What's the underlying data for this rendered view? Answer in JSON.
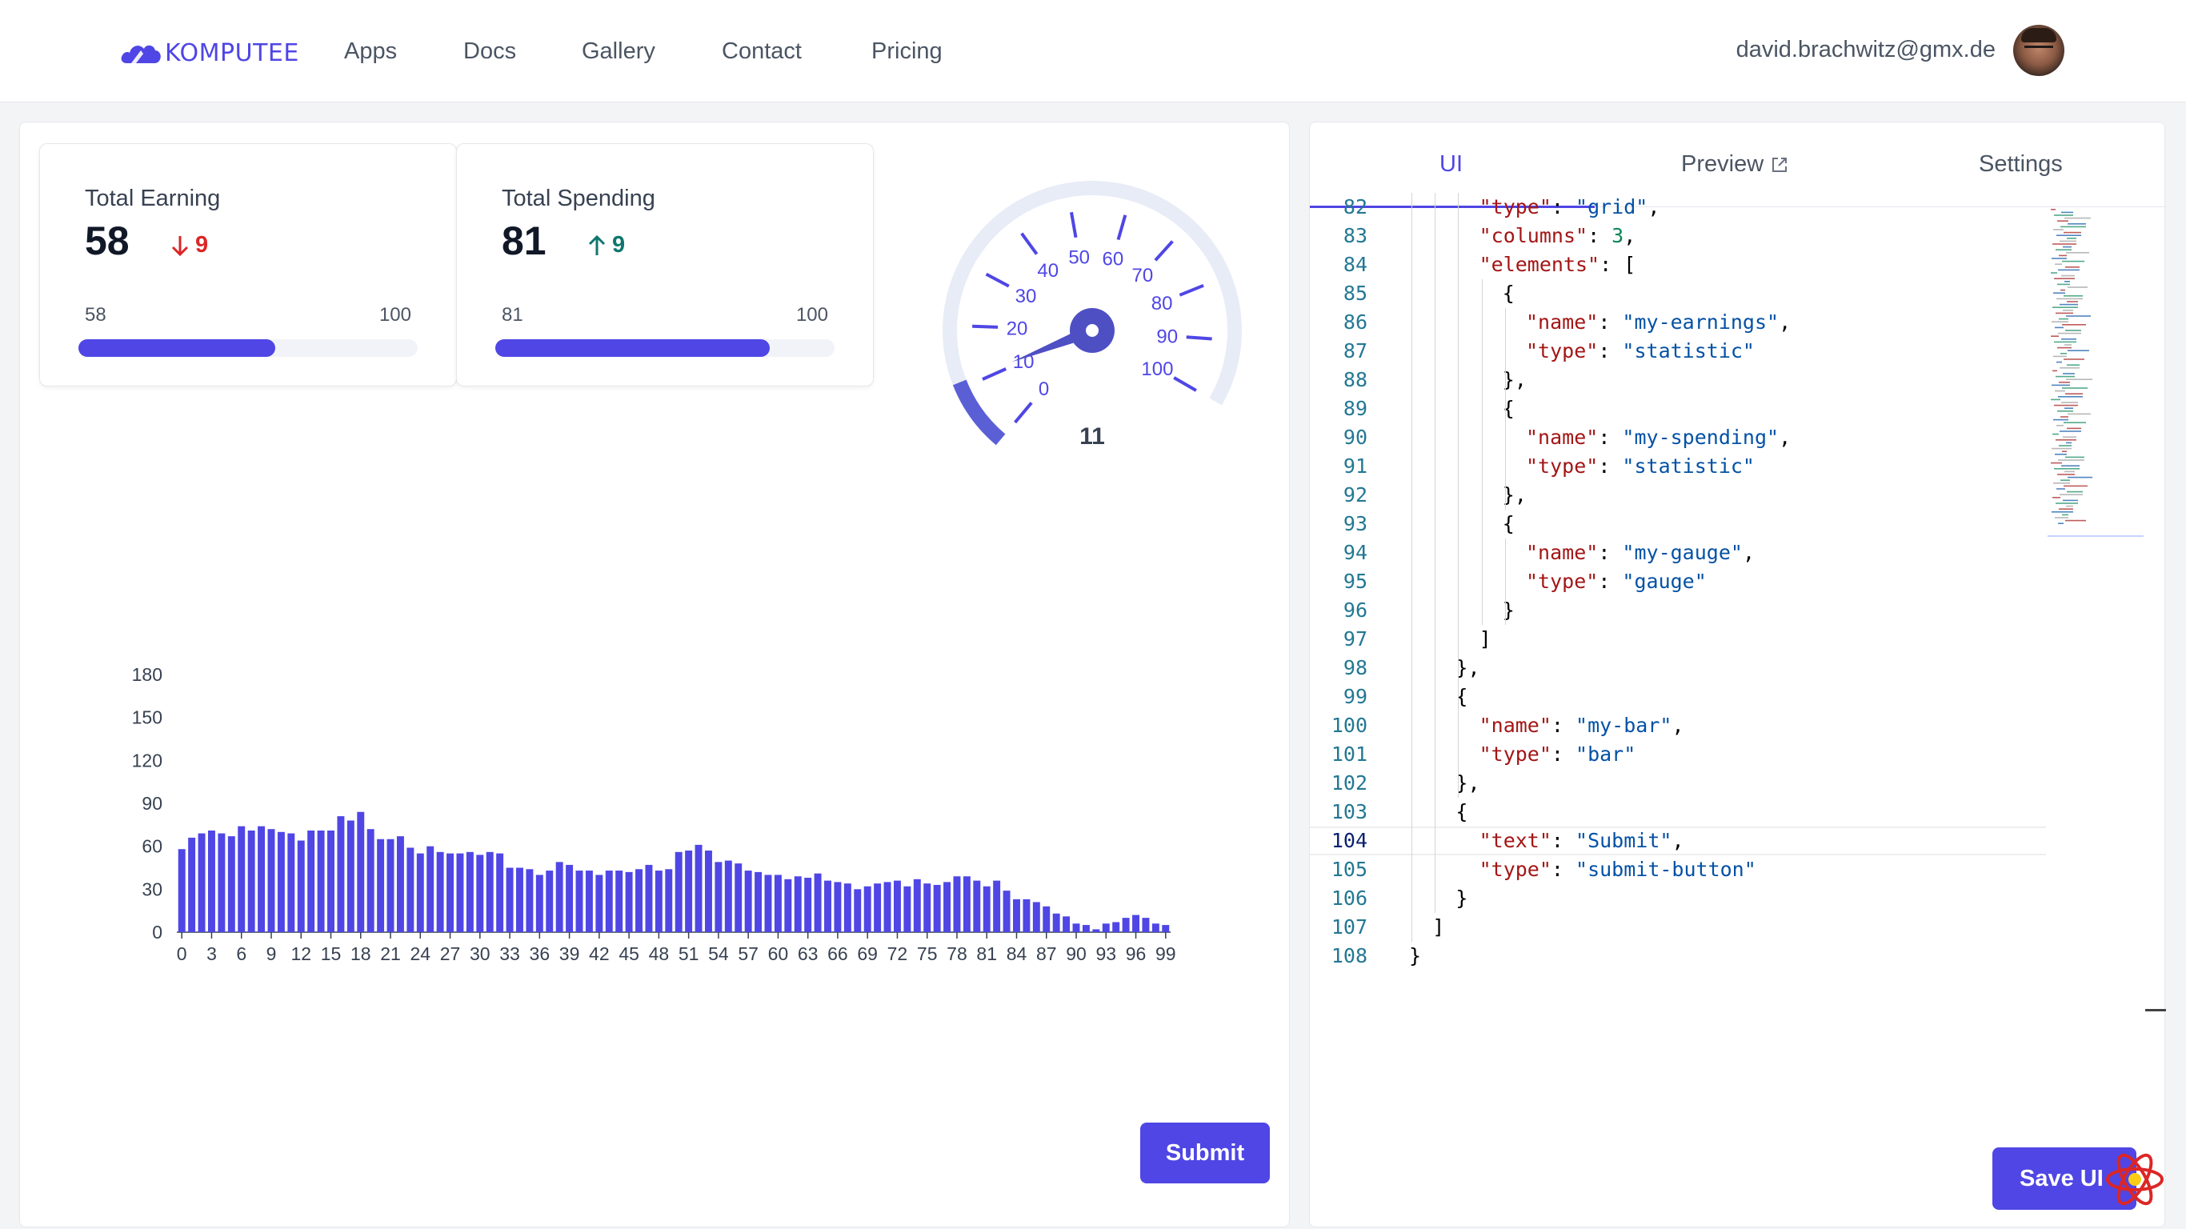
{
  "nav": {
    "brand": "KOMPUTEE",
    "links": [
      "Apps",
      "Docs",
      "Gallery",
      "Contact",
      "Pricing"
    ],
    "user_email": "david.brachwitz@gmx.de"
  },
  "cards": [
    {
      "title": "Total Earning",
      "value": "58",
      "delta": "9",
      "direction": "down",
      "progress_current": "58",
      "progress_max": "100",
      "progress_fraction": 0.58
    },
    {
      "title": "Total Spending",
      "value": "81",
      "delta": "9",
      "direction": "up",
      "progress_current": "81",
      "progress_max": "100",
      "progress_fraction": 0.81
    }
  ],
  "gauge": {
    "value": 11,
    "value_label": "11",
    "min": 0,
    "max": 100,
    "tick_labels": [
      "0",
      "10",
      "20",
      "30",
      "40",
      "50",
      "60",
      "70",
      "80",
      "90",
      "100"
    ]
  },
  "chart_data": {
    "type": "bar",
    "title": "",
    "xlabel": "",
    "ylabel": "",
    "ylim": [
      0,
      180
    ],
    "y_ticks": [
      "0",
      "30",
      "60",
      "90",
      "120",
      "150",
      "180"
    ],
    "x_tick_labels": [
      "0",
      "3",
      "6",
      "9",
      "12",
      "15",
      "18",
      "21",
      "24",
      "27",
      "30",
      "33",
      "36",
      "39",
      "42",
      "45",
      "48",
      "51",
      "54",
      "57",
      "60",
      "63",
      "66",
      "69",
      "72",
      "75",
      "78",
      "81",
      "84",
      "87",
      "90",
      "93",
      "96",
      "99"
    ],
    "grid": false,
    "color": "#4f46e5",
    "x": [
      0,
      1,
      2,
      3,
      4,
      5,
      6,
      7,
      8,
      9,
      10,
      11,
      12,
      13,
      14,
      15,
      16,
      17,
      18,
      19,
      20,
      21,
      22,
      23,
      24,
      25,
      26,
      27,
      28,
      29,
      30,
      31,
      32,
      33,
      34,
      35,
      36,
      37,
      38,
      39,
      40,
      41,
      42,
      43,
      44,
      45,
      46,
      47,
      48,
      49,
      50,
      51,
      52,
      53,
      54,
      55,
      56,
      57,
      58,
      59,
      60,
      61,
      62,
      63,
      64,
      65,
      66,
      67,
      68,
      69,
      70,
      71,
      72,
      73,
      74,
      75,
      76,
      77,
      78,
      79,
      80,
      81,
      82,
      83,
      84,
      85,
      86,
      87,
      88,
      89,
      90,
      91,
      92,
      93,
      94,
      95,
      96,
      97,
      98,
      99
    ],
    "values": [
      58,
      66,
      69,
      71,
      69,
      67,
      74,
      71,
      74,
      72,
      70,
      69,
      64,
      71,
      71,
      71,
      81,
      78,
      84,
      72,
      65,
      65,
      67,
      59,
      55,
      60,
      56,
      55,
      55,
      56,
      54,
      56,
      55,
      45,
      45,
      44,
      40,
      43,
      49,
      47,
      43,
      43,
      40,
      43,
      43,
      42,
      44,
      47,
      43,
      44,
      56,
      57,
      61,
      57,
      49,
      50,
      48,
      43,
      42,
      40,
      40,
      37,
      39,
      38,
      41,
      36,
      35,
      34,
      30,
      32,
      34,
      35,
      36,
      32,
      37,
      34,
      33,
      35,
      39,
      39,
      36,
      32,
      36,
      29,
      23,
      23,
      21,
      18,
      13,
      11,
      6,
      5,
      2,
      6,
      7,
      10,
      12,
      10,
      6,
      5
    ]
  },
  "submit_label": "Submit",
  "tabs": [
    {
      "label": "UI",
      "active": true
    },
    {
      "label": "Preview",
      "active": false
    },
    {
      "label": "Settings",
      "active": false
    }
  ],
  "code_lines": [
    {
      "n": "82",
      "indent": 6,
      "html": "<span class=\"k\">\"type\"</span>: <span class=\"s\">\"grid\"</span>,"
    },
    {
      "n": "83",
      "indent": 6,
      "html": "<span class=\"k\">\"columns\"</span>: <span class=\"n\">3</span>,"
    },
    {
      "n": "84",
      "indent": 6,
      "html": "<span class=\"k\">\"elements\"</span>: ["
    },
    {
      "n": "85",
      "indent": 8,
      "html": "{"
    },
    {
      "n": "86",
      "indent": 10,
      "html": "<span class=\"k\">\"name\"</span>: <span class=\"s\">\"my-earnings\"</span>,"
    },
    {
      "n": "87",
      "indent": 10,
      "html": "<span class=\"k\">\"type\"</span>: <span class=\"s\">\"statistic\"</span>"
    },
    {
      "n": "88",
      "indent": 8,
      "html": "},"
    },
    {
      "n": "89",
      "indent": 8,
      "html": "{"
    },
    {
      "n": "90",
      "indent": 10,
      "html": "<span class=\"k\">\"name\"</span>: <span class=\"s\">\"my-spending\"</span>,"
    },
    {
      "n": "91",
      "indent": 10,
      "html": "<span class=\"k\">\"type\"</span>: <span class=\"s\">\"statistic\"</span>"
    },
    {
      "n": "92",
      "indent": 8,
      "html": "},"
    },
    {
      "n": "93",
      "indent": 8,
      "html": "{"
    },
    {
      "n": "94",
      "indent": 10,
      "html": "<span class=\"k\">\"name\"</span>: <span class=\"s\">\"my-gauge\"</span>,"
    },
    {
      "n": "95",
      "indent": 10,
      "html": "<span class=\"k\">\"type\"</span>: <span class=\"s\">\"gauge\"</span>"
    },
    {
      "n": "96",
      "indent": 8,
      "html": "}"
    },
    {
      "n": "97",
      "indent": 6,
      "html": "]"
    },
    {
      "n": "98",
      "indent": 4,
      "html": "},"
    },
    {
      "n": "99",
      "indent": 4,
      "html": "{"
    },
    {
      "n": "100",
      "indent": 6,
      "html": "<span class=\"k\">\"name\"</span>: <span class=\"s\">\"my-bar\"</span>,"
    },
    {
      "n": "101",
      "indent": 6,
      "html": "<span class=\"k\">\"type\"</span>: <span class=\"s\">\"bar\"</span>"
    },
    {
      "n": "102",
      "indent": 4,
      "html": "},"
    },
    {
      "n": "103",
      "indent": 4,
      "html": "{"
    },
    {
      "n": "104",
      "indent": 6,
      "html": "<span class=\"k\">\"text\"</span>: <span class=\"s\">\"Submit\"</span>,",
      "current": true
    },
    {
      "n": "105",
      "indent": 6,
      "html": "<span class=\"k\">\"type\"</span>: <span class=\"s\">\"submit-button\"</span>"
    },
    {
      "n": "106",
      "indent": 4,
      "html": "}"
    },
    {
      "n": "107",
      "indent": 2,
      "html": "]"
    },
    {
      "n": "108",
      "indent": 0,
      "html": "}"
    }
  ],
  "save_label": "Save UI",
  "colors": {
    "accent": "#4f46e5",
    "delta_down": "#dc2626",
    "delta_up": "#0f766e"
  }
}
